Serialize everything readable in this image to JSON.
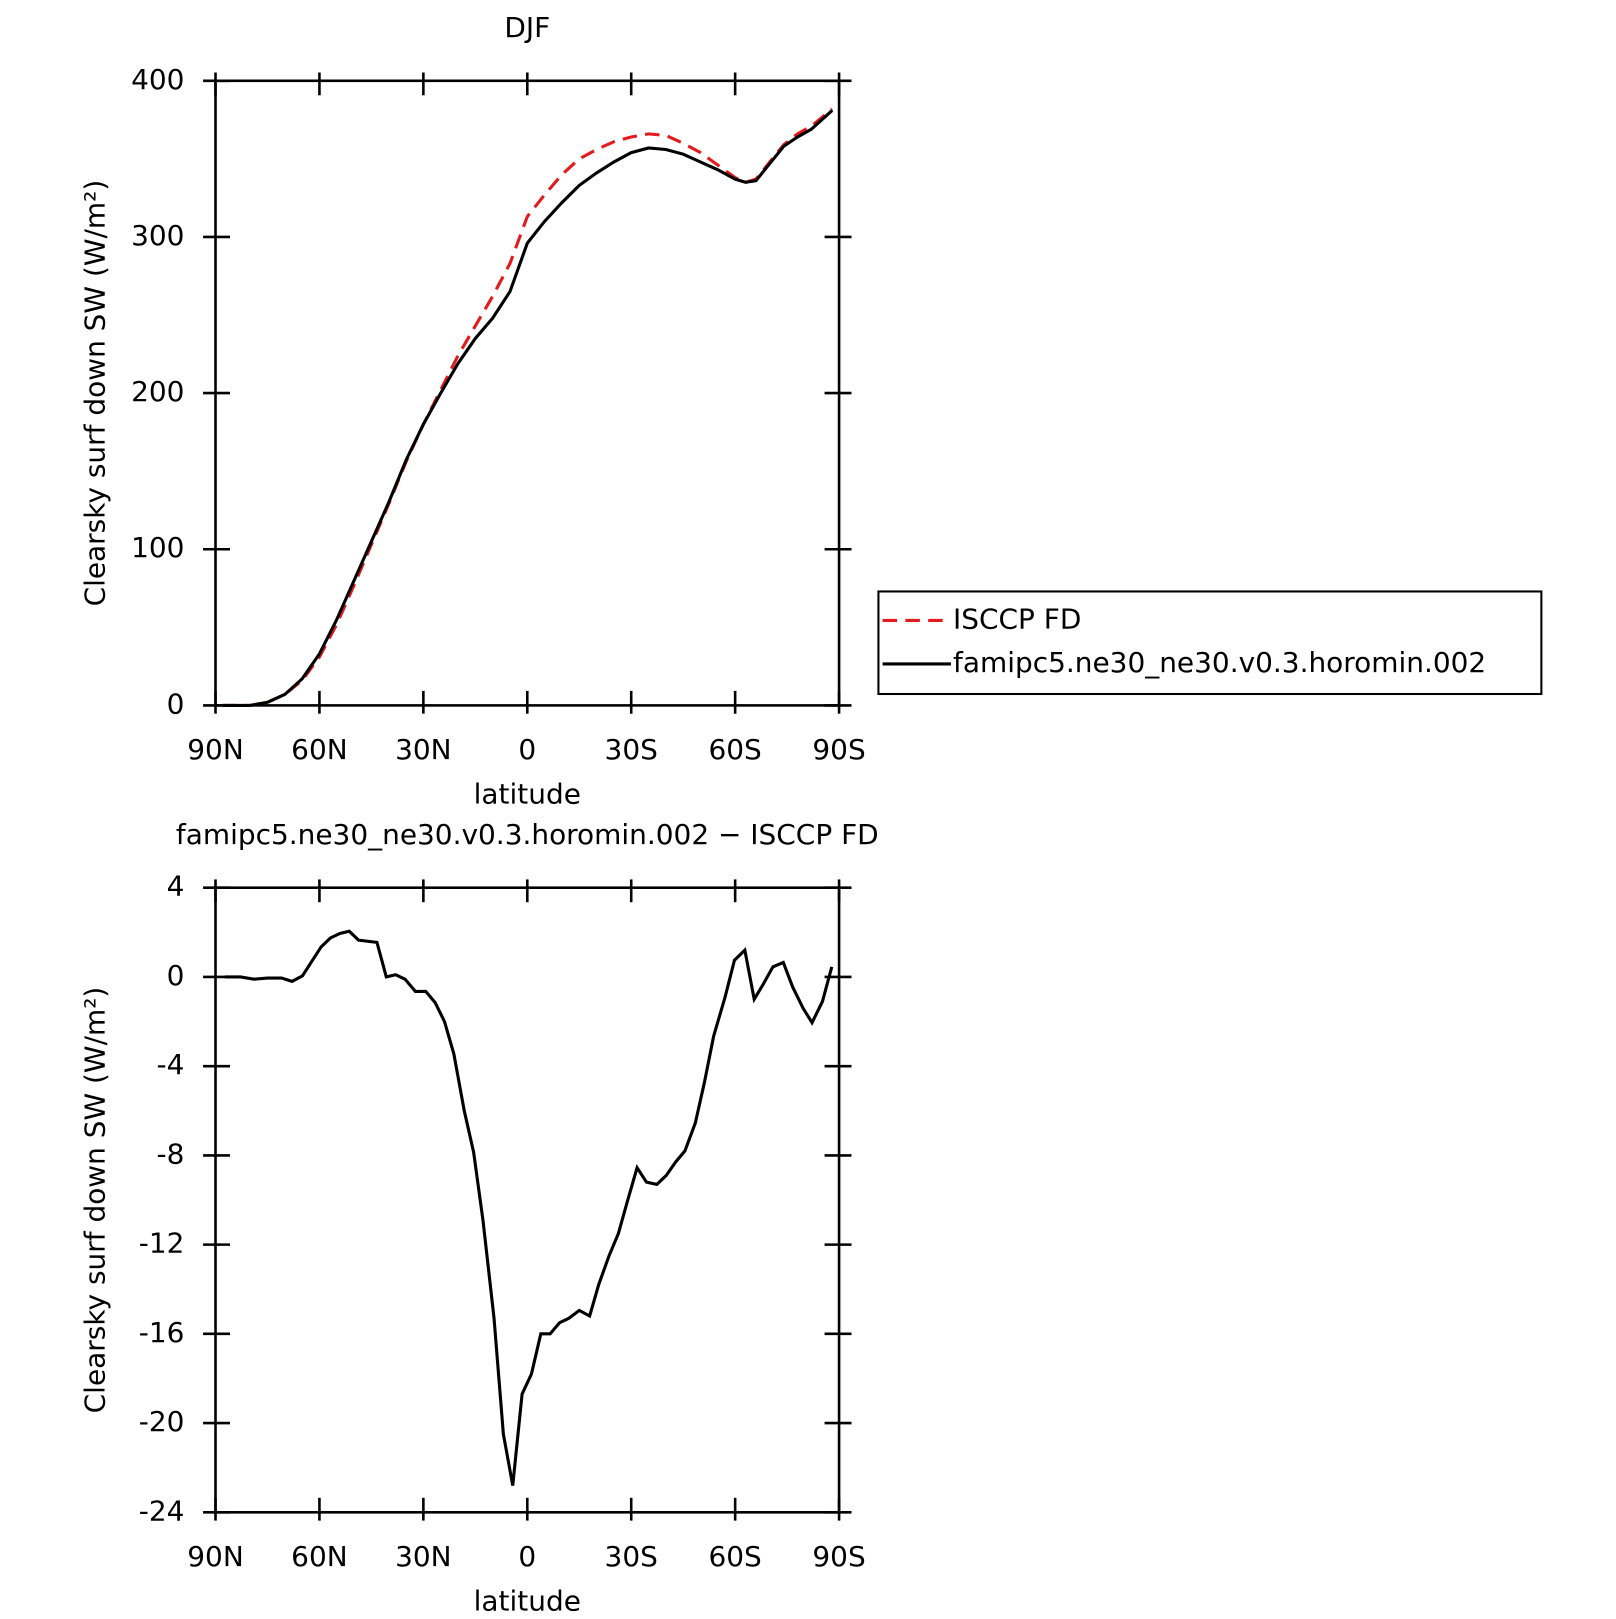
{
  "chart_data": [
    {
      "type": "line",
      "title": "DJF",
      "x_label": "latitude",
      "y_label": "Clearsky surf down SW (W/m²)",
      "xlim": [
        90,
        -90
      ],
      "xticks": [
        {
          "value": 90,
          "label": "90N"
        },
        {
          "value": 60,
          "label": "60N"
        },
        {
          "value": 30,
          "label": "30N"
        },
        0,
        {
          "value": -30,
          "label": "30S"
        },
        {
          "value": -60,
          "label": "60S"
        },
        {
          "value": -90,
          "label": "90S"
        }
      ],
      "ylim": [
        0,
        400
      ],
      "yticks": [
        0,
        100,
        200,
        300,
        400
      ],
      "legend_position": "right",
      "x": [
        88,
        80,
        75,
        70,
        65,
        60,
        55,
        50,
        45,
        40,
        35,
        30,
        25,
        20,
        15,
        10,
        5,
        0,
        -5,
        -10,
        -15,
        -20,
        -25,
        -30,
        -35,
        -40,
        -45,
        -50,
        -55,
        -60,
        -63,
        -66,
        -70,
        -74,
        -78,
        -82,
        -88
      ],
      "series": [
        {
          "name": "ISCCP FD",
          "color": "#e41a1c",
          "line_style": "dashed",
          "values": [
            0,
            0,
            2,
            7,
            16,
            31,
            52,
            77,
            103,
            129,
            156,
            180,
            202,
            224,
            243,
            262,
            283,
            313,
            327,
            340,
            350,
            356,
            361,
            364,
            366,
            365,
            360,
            354,
            346,
            338,
            335,
            337,
            348,
            359,
            366,
            371,
            382
          ]
        },
        {
          "name": "famipc5.ne30_ne30.v0.3.horomin.002",
          "color": "#000000",
          "line_style": "solid",
          "values": [
            0,
            0,
            2,
            7,
            17,
            33,
            55,
            80,
            105,
            130,
            157,
            180,
            200,
            219,
            235,
            248,
            265,
            296,
            310,
            322,
            333,
            341,
            348,
            354,
            357,
            356,
            353,
            348,
            343,
            337,
            335,
            336,
            347,
            358,
            364,
            369,
            381
          ]
        }
      ]
    },
    {
      "type": "line",
      "title": "famipc5.ne30_ne30.v0.3.horomin.002 − ISCCP FD",
      "x_label": "latitude",
      "y_label": "Clearsky surf down SW (W/m²)",
      "xlim": [
        90,
        -90
      ],
      "xticks": [
        {
          "value": 90,
          "label": "90N"
        },
        {
          "value": 60,
          "label": "60N"
        },
        {
          "value": 30,
          "label": "30N"
        },
        0,
        {
          "value": -30,
          "label": "30S"
        },
        {
          "value": -60,
          "label": "60S"
        },
        {
          "value": -90,
          "label": "90S"
        }
      ],
      "ylim": [
        -24,
        4
      ],
      "yticks": [
        -24,
        -20,
        -16,
        -12,
        -8,
        -4,
        0,
        4
      ],
      "x": [
        87.3,
        82.8,
        78.9,
        75.0,
        70.9,
        67.9,
        64.9,
        62.2,
        59.5,
        56.8,
        54.1,
        51.4,
        48.7,
        43.4,
        40.7,
        38.0,
        35.3,
        32.3,
        29.3,
        26.6,
        23.9,
        21.2,
        18.2,
        15.5,
        12.8,
        9.6,
        6.9,
        4.2,
        1.5,
        -1.2,
        -3.9,
        -6.6,
        -9.3,
        -12.0,
        -15.0,
        -18.0,
        -20.6,
        -23.6,
        -26.3,
        -29.0,
        -31.7,
        -34.4,
        -37.4,
        -40.1,
        -42.8,
        -45.5,
        -48.5,
        -51.1,
        -53.8,
        -57.1,
        -59.8,
        -62.8,
        -65.5,
        -68.2,
        -70.9,
        -73.9,
        -76.6,
        -79.6,
        -82.2,
        -85.2,
        -87.9
      ],
      "color": "#000000",
      "values": [
        0,
        0,
        -0.1,
        -0.05,
        -0.05,
        -0.2,
        0.05,
        0.7,
        1.35,
        1.75,
        1.95,
        2.05,
        1.65,
        1.55,
        0,
        0.1,
        -0.1,
        -0.65,
        -0.65,
        -1.15,
        -2.0,
        -3.45,
        -6.0,
        -7.85,
        -10.9,
        -15.3,
        -20.5,
        -22.8,
        -18.7,
        -17.8,
        -16.0,
        -16.0,
        -15.5,
        -15.3,
        -14.95,
        -15.2,
        -13.8,
        -12.5,
        -11.5,
        -10.0,
        -8.55,
        -9.2,
        -9.3,
        -8.9,
        -8.3,
        -7.8,
        -6.55,
        -4.75,
        -2.65,
        -0.9,
        0.75,
        1.2,
        -1.0,
        -0.3,
        0.45,
        0.65,
        -0.45,
        -1.4,
        -2.05,
        -1.1,
        0.45
      ]
    }
  ]
}
